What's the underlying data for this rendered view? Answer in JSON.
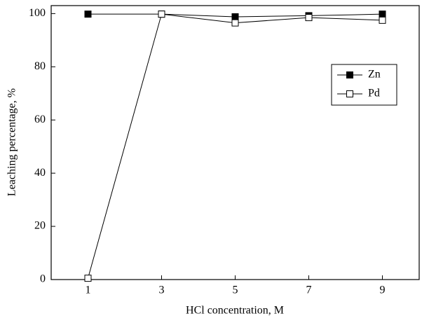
{
  "chart_data": {
    "type": "line",
    "x_label": "HCl concentration, M",
    "y_label": "Leaching percentage, %",
    "x": [
      1,
      3,
      5,
      7,
      9
    ],
    "series": [
      {
        "name": "Zn",
        "color": "#000000",
        "marker": "filled-square",
        "values": [
          99.8,
          99.8,
          98.8,
          99.2,
          99.8
        ]
      },
      {
        "name": "Pd",
        "color": "#000000",
        "marker": "open-square",
        "values": [
          0.5,
          99.8,
          96.5,
          98.5,
          97.5
        ]
      }
    ],
    "xlim": [
      0,
      10
    ],
    "xticks": [
      1,
      3,
      5,
      7,
      9
    ],
    "ylim": [
      0,
      103
    ],
    "yticks": [
      0,
      20,
      40,
      60,
      80,
      100
    ],
    "legend": "upper-right",
    "grid": false
  }
}
